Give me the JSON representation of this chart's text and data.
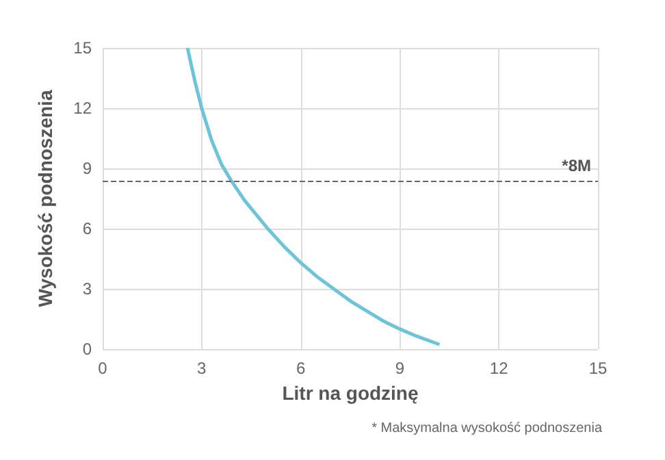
{
  "chart_data": {
    "type": "line",
    "xlabel": "Litr na godzinę",
    "ylabel": "Wysokość podnoszenia",
    "series": [
      {
        "color": "#6ec3d8",
        "x": [
          2.57,
          2.8,
          3.0,
          3.3,
          3.6,
          3.89,
          4.3,
          5.0,
          5.5,
          6.0,
          6.5,
          7.0,
          7.5,
          8.0,
          8.5,
          9.0,
          9.5,
          10.2
        ],
        "values": [
          15,
          13.3,
          12,
          10.4,
          9.2,
          8.4,
          7.4,
          6.0,
          5.1,
          4.3,
          3.6,
          3.0,
          2.4,
          1.9,
          1.4,
          1.0,
          0.65,
          0.23
        ]
      }
    ],
    "xlim": [
      0,
      15
    ],
    "xticks": [
      0,
      3,
      6,
      9,
      12,
      15
    ],
    "ylim": [
      0,
      15
    ],
    "yticks": [
      0,
      3,
      6,
      9,
      12,
      15
    ],
    "grid": true,
    "marker": "none",
    "line_style": "solid",
    "ref_lines": [
      {
        "axis": "y",
        "value": 8.4,
        "label": "*8M",
        "color": "#666666",
        "line_style": "dashed"
      }
    ],
    "annotations": [
      "* Maksymalna wysokość podnoszenia"
    ]
  }
}
